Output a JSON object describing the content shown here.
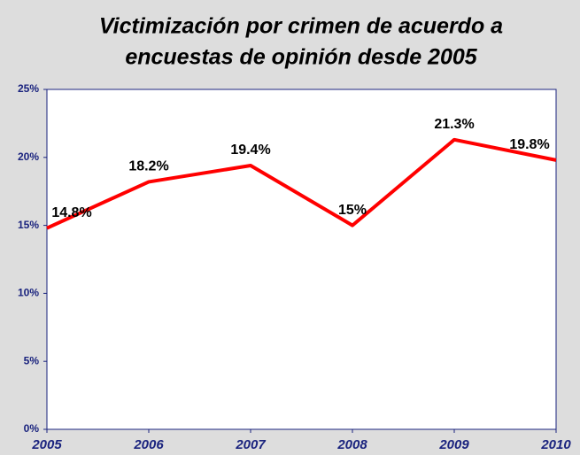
{
  "chart_data": {
    "type": "line",
    "title": [
      "Victimización por crimen de acuerdo a",
      "encuestas de opinión desde 2005"
    ],
    "x": [
      2005,
      2006,
      2007,
      2008,
      2009,
      2010
    ],
    "xlim": [
      2005,
      2010
    ],
    "xticks": [
      2005,
      2006,
      2007,
      2008,
      2009,
      2010
    ],
    "series": [
      {
        "color": "#ff0000",
        "values": [
          14.8,
          18.2,
          19.4,
          15,
          21.3,
          19.8
        ],
        "value_labels": [
          "14.8%",
          "18.2%",
          "19.4%",
          "15%",
          "21.3%",
          "19.8%"
        ]
      }
    ],
    "ylim": [
      0,
      25
    ],
    "yticks": [
      {
        "value": 0,
        "label": "0%"
      },
      {
        "value": 5,
        "label": "5%"
      },
      {
        "value": 10,
        "label": "10%"
      },
      {
        "value": 15,
        "label": "15%"
      },
      {
        "value": 20,
        "label": "20%"
      },
      {
        "value": 25,
        "label": "25%"
      }
    ]
  }
}
